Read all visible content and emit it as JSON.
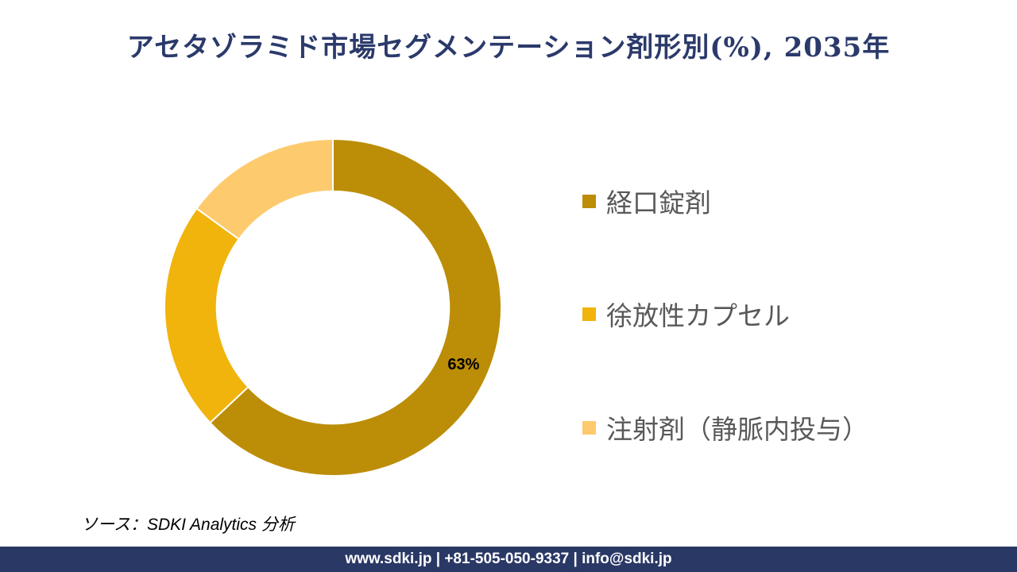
{
  "title": "アセタゾラミド市場セグメンテーション剤形別(%), 2035年",
  "source_note": "ソース：SDKI Analytics 分析",
  "footer": {
    "text": "www.sdki.jp | +81-505-050-9337 | info@sdki.jp",
    "background_color": "#2A3866",
    "text_color": "#FFFFFF"
  },
  "colors": {
    "title_text": "#2B3A6B",
    "legend_text": "#595959",
    "data_label_text": "#000000",
    "background": "#FFFFFF"
  },
  "chart_data": {
    "type": "pie",
    "subtype": "donut",
    "title": "アセタゾラミド市場セグメンテーション剤形別(%), 2035年",
    "categories": [
      "経口錠剤",
      "徐放性カプセル",
      "注射剤（静脈内投与）"
    ],
    "values": [
      63,
      22,
      15
    ],
    "unit": "%",
    "colors": [
      "#BC8D06",
      "#F1B40C",
      "#FDCA6E"
    ],
    "data_labels": [
      "63%",
      "",
      ""
    ],
    "start_angle_deg": 0,
    "direction": "clockwise",
    "inner_radius_ratio": 0.69,
    "legend_position": "right"
  }
}
